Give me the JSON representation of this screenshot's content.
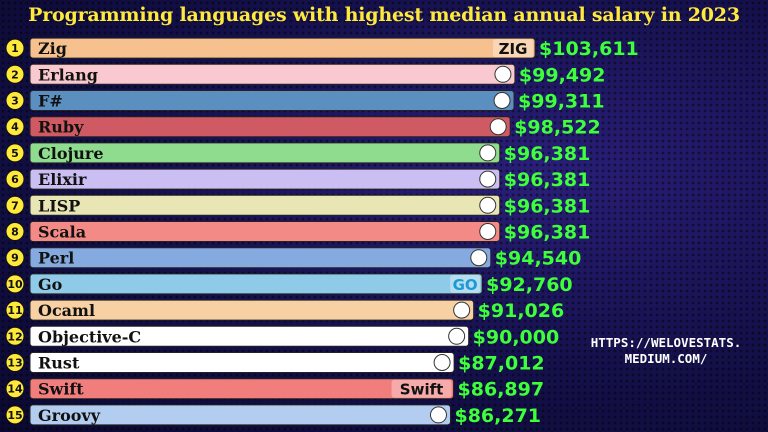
{
  "title": "Programming languages with highest median annual salary in 2023",
  "watermark": "HTTPS://WELOVESTATS.\nMEDIUM.COM/",
  "chart_data": {
    "type": "bar",
    "orientation": "horizontal",
    "title": "Programming languages with highest median annual salary in 2023",
    "ranks": [
      1,
      2,
      3,
      4,
      5,
      6,
      7,
      8,
      9,
      10,
      11,
      12,
      13,
      14,
      15
    ],
    "categories": [
      "Zig",
      "Erlang",
      "F#",
      "Ruby",
      "Clojure",
      "Elixir",
      "LISP",
      "Scala",
      "Perl",
      "Go",
      "Ocaml",
      "Objective-C",
      "Rust",
      "Swift",
      "Groovy"
    ],
    "values": [
      103611,
      99492,
      99311,
      98522,
      96381,
      96381,
      96381,
      96381,
      94540,
      92760,
      91026,
      90000,
      87012,
      86897,
      86271
    ],
    "value_labels": [
      "$103,611",
      "$99,492",
      "$99,311",
      "$98,522",
      "$96,381",
      "$96,381",
      "$96,381",
      "$96,381",
      "$94,540",
      "$92,760",
      "$91,026",
      "$90,000",
      "$87,012",
      "$86,897",
      "$86,271"
    ],
    "bar_colors": [
      "#f6c18f",
      "#f9c9cf",
      "#5b8fbf",
      "#cf5a63",
      "#8fdc8f",
      "#cbbef2",
      "#e8e6b4",
      "#f48a86",
      "#84aadf",
      "#8fcbe8",
      "#f7d0a3",
      "#ffffff",
      "#ffffff",
      "#f27d7d",
      "#b3cdf0"
    ],
    "logo_texts": [
      "ZIG",
      "",
      "",
      "",
      "",
      "",
      "",
      "",
      "",
      "GO",
      "",
      "",
      "",
      "Swift",
      ""
    ],
    "value_color": "#3dff3a",
    "title_color": "#ffe93a",
    "grid": false,
    "legend": "none"
  }
}
